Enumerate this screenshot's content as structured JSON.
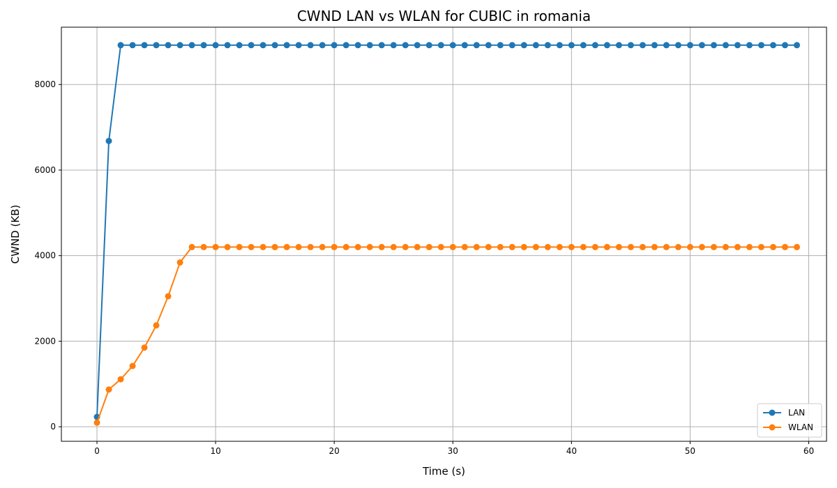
{
  "chart_data": {
    "type": "line",
    "title": "CWND LAN vs WLAN for CUBIC in romania",
    "xlabel": "Time (s)",
    "ylabel": "CWND (KB)",
    "xlim": [
      -3,
      61.5
    ],
    "ylim": [
      -340,
      9340
    ],
    "xticks": [
      0,
      10,
      20,
      30,
      40,
      50,
      60
    ],
    "yticks": [
      0,
      2000,
      4000,
      6000,
      8000
    ],
    "grid": true,
    "legend_position": "lower-right",
    "x": [
      0,
      1,
      2,
      3,
      4,
      5,
      6,
      7,
      8,
      9,
      10,
      11,
      12,
      13,
      14,
      15,
      16,
      17,
      18,
      19,
      20,
      21,
      22,
      23,
      24,
      25,
      26,
      27,
      28,
      29,
      30,
      31,
      32,
      33,
      34,
      35,
      36,
      37,
      38,
      39,
      40,
      41,
      42,
      43,
      44,
      45,
      46,
      47,
      48,
      49,
      50,
      51,
      52,
      53,
      54,
      55,
      56,
      57,
      58,
      59
    ],
    "series": [
      {
        "name": "LAN",
        "color": "#1f77b4",
        "values": [
          230,
          6680,
          8920,
          8920,
          8920,
          8920,
          8920,
          8920,
          8920,
          8920,
          8920,
          8920,
          8920,
          8920,
          8920,
          8920,
          8920,
          8920,
          8920,
          8920,
          8920,
          8920,
          8920,
          8920,
          8920,
          8920,
          8920,
          8920,
          8920,
          8920,
          8920,
          8920,
          8920,
          8920,
          8920,
          8920,
          8920,
          8920,
          8920,
          8920,
          8920,
          8920,
          8920,
          8920,
          8920,
          8920,
          8920,
          8920,
          8920,
          8920,
          8920,
          8920,
          8920,
          8920,
          8920,
          8920,
          8920,
          8920,
          8920,
          8920
        ]
      },
      {
        "name": "WLAN",
        "color": "#ff7f0e",
        "values": [
          95,
          870,
          1110,
          1420,
          1850,
          2370,
          3050,
          3840,
          4200,
          4200,
          4200,
          4200,
          4200,
          4200,
          4200,
          4200,
          4200,
          4200,
          4200,
          4200,
          4200,
          4200,
          4200,
          4200,
          4200,
          4200,
          4200,
          4200,
          4200,
          4200,
          4200,
          4200,
          4200,
          4200,
          4200,
          4200,
          4200,
          4200,
          4200,
          4200,
          4200,
          4200,
          4200,
          4200,
          4200,
          4200,
          4200,
          4200,
          4200,
          4200,
          4200,
          4200,
          4200,
          4200,
          4200,
          4200,
          4200,
          4200,
          4200,
          4200
        ]
      }
    ]
  }
}
